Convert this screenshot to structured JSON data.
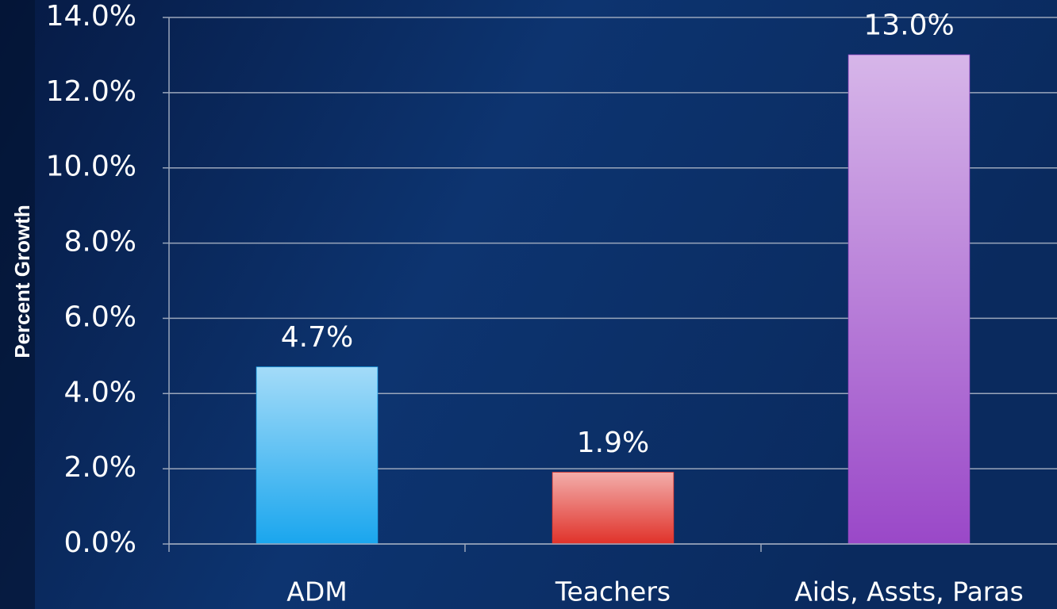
{
  "chart_data": {
    "type": "bar",
    "y_label": "Percent Growth",
    "categories": [
      "ADM",
      "Teachers",
      "Aids, Assts, Paras"
    ],
    "values": [
      4.7,
      1.9,
      13.0
    ],
    "value_labels": [
      "4.7%",
      "1.9%",
      "13.0%"
    ],
    "colors": [
      "#1aa6ee",
      "#e0322a",
      "#9a48c8"
    ],
    "ylim": [
      0,
      14
    ],
    "yticks": [
      {
        "value": 0,
        "label": "0.0%"
      },
      {
        "value": 2,
        "label": "2.0%"
      },
      {
        "value": 4,
        "label": "4.0%"
      },
      {
        "value": 6,
        "label": "6.0%"
      },
      {
        "value": 8,
        "label": "8.0%"
      },
      {
        "value": 10,
        "label": "10.0%"
      },
      {
        "value": 12,
        "label": "12.0%"
      },
      {
        "value": 14,
        "label": "14.0%"
      }
    ],
    "grid": true
  }
}
